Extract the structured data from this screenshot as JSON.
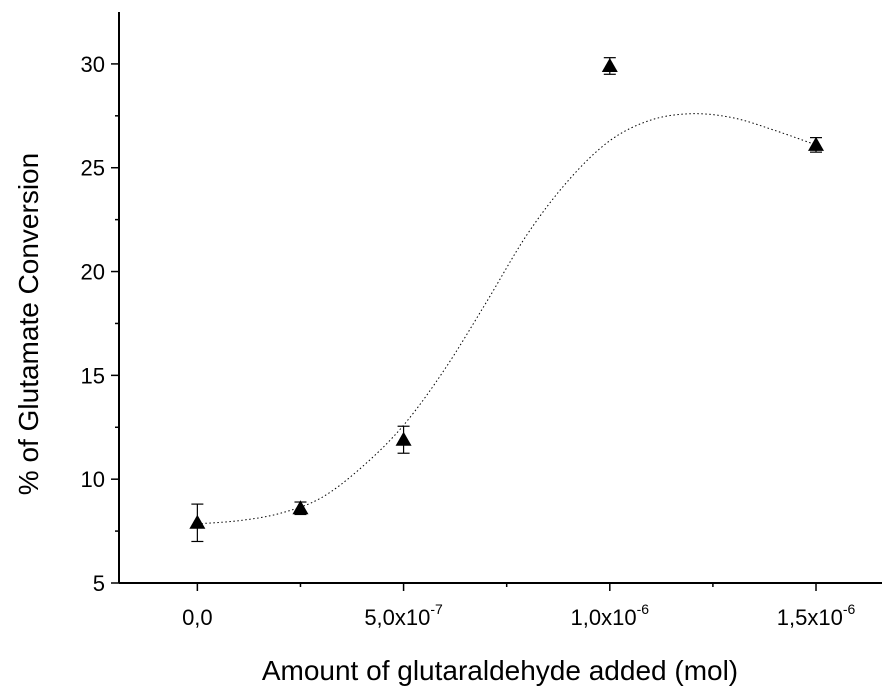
{
  "chart_data": {
    "type": "scatter",
    "title": "",
    "xlabel": "Amount of glutaraldehyde added (mol)",
    "ylabel": "% of Glutamate Conversion",
    "xlim": [
      -1.9e-07,
      1.66e-06
    ],
    "ylim": [
      5,
      32.5
    ],
    "x_ticks": [
      {
        "value": 0,
        "mantissa": "0,0",
        "exponent": ""
      },
      {
        "value": 5e-07,
        "mantissa": "5,0x10",
        "exponent": "-7"
      },
      {
        "value": 1e-06,
        "mantissa": "1,0x10",
        "exponent": "-6"
      },
      {
        "value": 1.5e-06,
        "mantissa": "1,5x10",
        "exponent": "-6"
      }
    ],
    "y_ticks": [
      5,
      10,
      15,
      20,
      25,
      30
    ],
    "grid": false,
    "series": [
      {
        "marker": "triangle",
        "x": [
          0,
          2.5e-07,
          5e-07,
          1e-06,
          1.5e-06
        ],
        "y": [
          7.9,
          8.6,
          11.9,
          29.9,
          26.1
        ],
        "err": [
          0.9,
          0.3,
          0.65,
          0.4,
          0.35
        ]
      }
    ],
    "fit_curve": {
      "style": "dotted",
      "x": [
        0,
        1e-07,
        2e-07,
        3e-07,
        4e-07,
        5e-07,
        6e-07,
        7e-07,
        8e-07,
        9e-07,
        1e-06,
        1.1e-06,
        1.2e-06,
        1.3e-06,
        1.4e-06,
        1.5e-06
      ],
      "y": [
        7.85,
        8.0,
        8.35,
        9.1,
        10.6,
        12.6,
        15.3,
        18.5,
        21.8,
        24.4,
        26.3,
        27.3,
        27.6,
        27.4,
        26.8,
        26.1
      ]
    }
  }
}
